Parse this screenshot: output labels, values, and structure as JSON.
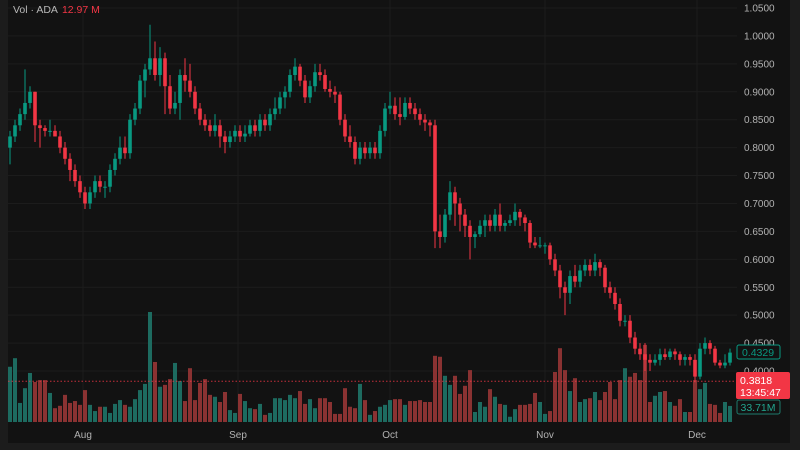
{
  "legend": {
    "label": "Vol · ADA",
    "value": "12.97 M"
  },
  "colors": {
    "up": "#089981",
    "down": "#f23645",
    "up_volume": "#1d6b60",
    "down_volume": "#8a3232",
    "background": "#121212",
    "grid": "#1c1c1c",
    "axis_text": "#b2b2b2"
  },
  "price_labels": {
    "last_close": "0.4329",
    "current_price": "0.3818",
    "countdown": "13:45:47",
    "last_volume": "33.71M"
  },
  "chart_data": {
    "type": "candlestick",
    "title": "",
    "ylim": [
      0.38,
      1.05
    ],
    "y_ticks": [
      "1.0500",
      "1.0000",
      "0.9500",
      "0.9000",
      "0.8500",
      "0.8000",
      "0.7500",
      "0.7000",
      "0.6500",
      "0.6000",
      "0.5500",
      "0.5000",
      "0.4500",
      "0.4000"
    ],
    "x_ticks": [
      {
        "label": "Aug",
        "at_candle": 14.6
      },
      {
        "label": "Sep",
        "at_candle": 45.6
      },
      {
        "label": "Oct",
        "at_candle": 76
      },
      {
        "label": "Nov",
        "at_candle": 107
      },
      {
        "label": "Dec",
        "at_candle": 137.4
      }
    ],
    "grid": true,
    "reference_line": 0.3818,
    "ohlc": [
      [
        0.8,
        0.83,
        0.77,
        0.82
      ],
      [
        0.82,
        0.85,
        0.81,
        0.84
      ],
      [
        0.84,
        0.87,
        0.83,
        0.86
      ],
      [
        0.86,
        0.94,
        0.85,
        0.88
      ],
      [
        0.88,
        0.91,
        0.87,
        0.9
      ],
      [
        0.9,
        0.9,
        0.81,
        0.84
      ],
      [
        0.84,
        0.85,
        0.8,
        0.835
      ],
      [
        0.835,
        0.84,
        0.82,
        0.83
      ],
      [
        0.83,
        0.85,
        0.82,
        0.83
      ],
      [
        0.83,
        0.84,
        0.82,
        0.82
      ],
      [
        0.82,
        0.83,
        0.79,
        0.8
      ],
      [
        0.8,
        0.81,
        0.77,
        0.78
      ],
      [
        0.78,
        0.79,
        0.74,
        0.76
      ],
      [
        0.76,
        0.77,
        0.73,
        0.74
      ],
      [
        0.74,
        0.75,
        0.71,
        0.72
      ],
      [
        0.72,
        0.73,
        0.69,
        0.7
      ],
      [
        0.7,
        0.73,
        0.69,
        0.72
      ],
      [
        0.72,
        0.75,
        0.71,
        0.74
      ],
      [
        0.74,
        0.75,
        0.72,
        0.73
      ],
      [
        0.73,
        0.74,
        0.71,
        0.73
      ],
      [
        0.73,
        0.77,
        0.72,
        0.76
      ],
      [
        0.76,
        0.79,
        0.75,
        0.78
      ],
      [
        0.78,
        0.82,
        0.77,
        0.8
      ],
      [
        0.8,
        0.82,
        0.78,
        0.79
      ],
      [
        0.79,
        0.86,
        0.78,
        0.85
      ],
      [
        0.85,
        0.88,
        0.84,
        0.87
      ],
      [
        0.87,
        0.93,
        0.86,
        0.92
      ],
      [
        0.92,
        0.95,
        0.89,
        0.94
      ],
      [
        0.94,
        1.02,
        0.93,
        0.96
      ],
      [
        0.96,
        0.99,
        0.92,
        0.93
      ],
      [
        0.93,
        0.98,
        0.91,
        0.96
      ],
      [
        0.96,
        0.97,
        0.86,
        0.91
      ],
      [
        0.91,
        0.93,
        0.86,
        0.87
      ],
      [
        0.87,
        0.9,
        0.86,
        0.88
      ],
      [
        0.88,
        0.94,
        0.85,
        0.93
      ],
      [
        0.93,
        0.96,
        0.9,
        0.92
      ],
      [
        0.92,
        0.95,
        0.89,
        0.9
      ],
      [
        0.9,
        0.91,
        0.86,
        0.87
      ],
      [
        0.87,
        0.88,
        0.84,
        0.85
      ],
      [
        0.85,
        0.86,
        0.83,
        0.84
      ],
      [
        0.84,
        0.85,
        0.82,
        0.83
      ],
      [
        0.83,
        0.86,
        0.82,
        0.84
      ],
      [
        0.84,
        0.85,
        0.8,
        0.82
      ],
      [
        0.82,
        0.83,
        0.79,
        0.81
      ],
      [
        0.81,
        0.83,
        0.8,
        0.82
      ],
      [
        0.82,
        0.84,
        0.81,
        0.83
      ],
      [
        0.83,
        0.84,
        0.81,
        0.82
      ],
      [
        0.82,
        0.84,
        0.81,
        0.825
      ],
      [
        0.825,
        0.85,
        0.82,
        0.84
      ],
      [
        0.84,
        0.85,
        0.82,
        0.83
      ],
      [
        0.83,
        0.86,
        0.82,
        0.85
      ],
      [
        0.85,
        0.86,
        0.83,
        0.84
      ],
      [
        0.84,
        0.87,
        0.83,
        0.86
      ],
      [
        0.86,
        0.89,
        0.85,
        0.87
      ],
      [
        0.87,
        0.9,
        0.86,
        0.89
      ],
      [
        0.89,
        0.91,
        0.87,
        0.9
      ],
      [
        0.9,
        0.94,
        0.89,
        0.93
      ],
      [
        0.93,
        0.96,
        0.92,
        0.945
      ],
      [
        0.945,
        0.95,
        0.91,
        0.92
      ],
      [
        0.92,
        0.93,
        0.88,
        0.89
      ],
      [
        0.89,
        0.92,
        0.88,
        0.91
      ],
      [
        0.91,
        0.95,
        0.9,
        0.935
      ],
      [
        0.935,
        0.95,
        0.92,
        0.93
      ],
      [
        0.93,
        0.94,
        0.9,
        0.905
      ],
      [
        0.905,
        0.92,
        0.89,
        0.9
      ],
      [
        0.9,
        0.91,
        0.88,
        0.895
      ],
      [
        0.895,
        0.9,
        0.84,
        0.85
      ],
      [
        0.85,
        0.86,
        0.81,
        0.82
      ],
      [
        0.82,
        0.84,
        0.8,
        0.81
      ],
      [
        0.81,
        0.82,
        0.77,
        0.78
      ],
      [
        0.78,
        0.81,
        0.77,
        0.8
      ],
      [
        0.8,
        0.81,
        0.78,
        0.79
      ],
      [
        0.79,
        0.81,
        0.78,
        0.8
      ],
      [
        0.8,
        0.81,
        0.78,
        0.79
      ],
      [
        0.79,
        0.84,
        0.78,
        0.83
      ],
      [
        0.83,
        0.88,
        0.82,
        0.87
      ],
      [
        0.87,
        0.9,
        0.86,
        0.875
      ],
      [
        0.875,
        0.89,
        0.85,
        0.86
      ],
      [
        0.86,
        0.89,
        0.84,
        0.855
      ],
      [
        0.855,
        0.89,
        0.85,
        0.88
      ],
      [
        0.88,
        0.89,
        0.86,
        0.87
      ],
      [
        0.87,
        0.88,
        0.85,
        0.86
      ],
      [
        0.86,
        0.87,
        0.84,
        0.85
      ],
      [
        0.85,
        0.86,
        0.83,
        0.845
      ],
      [
        0.845,
        0.85,
        0.82,
        0.84
      ],
      [
        0.84,
        0.85,
        0.62,
        0.65
      ],
      [
        0.65,
        0.68,
        0.62,
        0.64
      ],
      [
        0.64,
        0.69,
        0.63,
        0.68
      ],
      [
        0.68,
        0.74,
        0.67,
        0.72
      ],
      [
        0.72,
        0.73,
        0.66,
        0.7
      ],
      [
        0.7,
        0.71,
        0.65,
        0.68
      ],
      [
        0.68,
        0.69,
        0.64,
        0.66
      ],
      [
        0.66,
        0.67,
        0.6,
        0.64
      ],
      [
        0.64,
        0.65,
        0.62,
        0.645
      ],
      [
        0.645,
        0.67,
        0.64,
        0.66
      ],
      [
        0.66,
        0.68,
        0.64,
        0.67
      ],
      [
        0.67,
        0.68,
        0.65,
        0.66
      ],
      [
        0.66,
        0.69,
        0.65,
        0.68
      ],
      [
        0.68,
        0.7,
        0.65,
        0.66
      ],
      [
        0.66,
        0.67,
        0.65,
        0.665
      ],
      [
        0.665,
        0.68,
        0.66,
        0.67
      ],
      [
        0.67,
        0.7,
        0.66,
        0.685
      ],
      [
        0.685,
        0.69,
        0.66,
        0.675
      ],
      [
        0.675,
        0.68,
        0.65,
        0.665
      ],
      [
        0.665,
        0.67,
        0.62,
        0.63
      ],
      [
        0.63,
        0.64,
        0.62,
        0.625
      ],
      [
        0.625,
        0.64,
        0.62,
        0.625
      ],
      [
        0.625,
        0.63,
        0.61,
        0.625
      ],
      [
        0.625,
        0.63,
        0.59,
        0.6
      ],
      [
        0.6,
        0.61,
        0.57,
        0.58
      ],
      [
        0.58,
        0.59,
        0.53,
        0.55
      ],
      [
        0.55,
        0.56,
        0.5,
        0.54
      ],
      [
        0.54,
        0.58,
        0.52,
        0.57
      ],
      [
        0.57,
        0.59,
        0.55,
        0.56
      ],
      [
        0.56,
        0.59,
        0.55,
        0.58
      ],
      [
        0.58,
        0.6,
        0.57,
        0.59
      ],
      [
        0.59,
        0.6,
        0.57,
        0.58
      ],
      [
        0.58,
        0.61,
        0.57,
        0.595
      ],
      [
        0.595,
        0.6,
        0.57,
        0.585
      ],
      [
        0.585,
        0.59,
        0.54,
        0.55
      ],
      [
        0.55,
        0.56,
        0.53,
        0.54
      ],
      [
        0.54,
        0.55,
        0.51,
        0.52
      ],
      [
        0.52,
        0.53,
        0.48,
        0.49
      ],
      [
        0.49,
        0.5,
        0.48,
        0.49
      ],
      [
        0.49,
        0.5,
        0.45,
        0.46
      ],
      [
        0.46,
        0.47,
        0.43,
        0.44
      ],
      [
        0.44,
        0.45,
        0.42,
        0.43
      ],
      [
        0.43,
        0.45,
        0.4,
        0.42
      ],
      [
        0.42,
        0.43,
        0.4,
        0.415
      ],
      [
        0.415,
        0.43,
        0.41,
        0.42
      ],
      [
        0.42,
        0.44,
        0.41,
        0.43
      ],
      [
        0.43,
        0.44,
        0.42,
        0.425
      ],
      [
        0.425,
        0.44,
        0.42,
        0.435
      ],
      [
        0.435,
        0.44,
        0.42,
        0.43
      ],
      [
        0.43,
        0.435,
        0.41,
        0.42
      ],
      [
        0.42,
        0.43,
        0.41,
        0.425
      ],
      [
        0.425,
        0.43,
        0.41,
        0.42
      ],
      [
        0.42,
        0.43,
        0.38,
        0.39
      ],
      [
        0.39,
        0.45,
        0.385,
        0.44
      ],
      [
        0.44,
        0.46,
        0.43,
        0.45
      ],
      [
        0.45,
        0.455,
        0.43,
        0.44
      ],
      [
        0.44,
        0.445,
        0.41,
        0.415
      ],
      [
        0.415,
        0.42,
        0.405,
        0.41
      ],
      [
        0.41,
        0.43,
        0.405,
        0.415
      ],
      [
        0.415,
        0.44,
        0.41,
        0.433
      ]
    ],
    "volume_millions": [
      116,
      134,
      40,
      71,
      103,
      84,
      88,
      88,
      61,
      29,
      34,
      57,
      40,
      44,
      36,
      67,
      36,
      23,
      32,
      32,
      19,
      38,
      46,
      36,
      32,
      48,
      67,
      80,
      231,
      126,
      74,
      78,
      90,
      124,
      86,
      44,
      113,
      46,
      82,
      90,
      57,
      53,
      42,
      63,
      25,
      19,
      59,
      44,
      29,
      27,
      38,
      15,
      19,
      50,
      50,
      46,
      57,
      50,
      65,
      38,
      48,
      29,
      50,
      50,
      42,
      17,
      17,
      71,
      32,
      29,
      80,
      46,
      15,
      23,
      32,
      36,
      46,
      48,
      48,
      36,
      44,
      44,
      46,
      42,
      42,
      139,
      137,
      97,
      78,
      97,
      59,
      76,
      109,
      21,
      42,
      32,
      69,
      53,
      38,
      36,
      11,
      27,
      36,
      36,
      38,
      61,
      42,
      17,
      23,
      105,
      155,
      109,
      65,
      92,
      42,
      48,
      50,
      63,
      46,
      63,
      84,
      48,
      88,
      113,
      95,
      103,
      88,
      162,
      42,
      55,
      63,
      65,
      42,
      34,
      48,
      21,
      21,
      88,
      69,
      82,
      38,
      36,
      19,
      42,
      33.71
    ]
  }
}
